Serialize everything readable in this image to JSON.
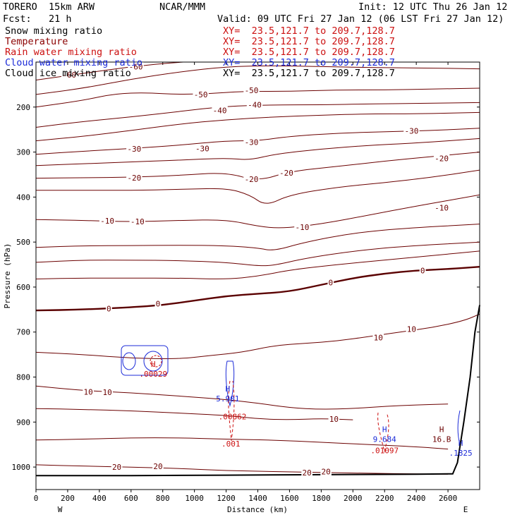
{
  "header": {
    "model": "TORERO  15km ARW",
    "center": "NCAR/MMM",
    "init": "Init: 12 UTC Thu 26 Jan 12",
    "fcst": "Fcst:   21 h",
    "valid": "Valid: 09 UTC Fri 27 Jan 12 (06 LST Fri 27 Jan 12)",
    "fields": [
      {
        "name": "Snow mixing ratio",
        "xy": "XY=  23.5,121.7 to 209.7,128.7",
        "color": "#000000"
      },
      {
        "name": "Temperature",
        "xy": "XY=  23.5,121.7 to 209.7,128.7",
        "color": "#8b0000"
      },
      {
        "name": "Rain water mixing ratio",
        "xy": "XY=  23.5,121.7 to 209.7,128.7",
        "color": "#cc1010"
      },
      {
        "name": "Cloud water mixing ratio",
        "xy": "XY=  23.5,121.7 to 209.7,128.7",
        "color": "#1c2bd8"
      },
      {
        "name": "Cloud ice mixing ratio",
        "xy": "XY=  23.5,121.7 to 209.7,128.7",
        "color": "#000000"
      }
    ]
  },
  "chart_data": {
    "type": "contour-cross-section",
    "xlabel": "Distance (km)",
    "ylabel": "Pressure (hPa)",
    "xlim": [
      0,
      2800
    ],
    "ylim": [
      1050,
      100
    ],
    "xticks": [
      0,
      200,
      400,
      600,
      800,
      1000,
      1200,
      1400,
      1600,
      1800,
      2000,
      2200,
      2400,
      2600
    ],
    "yticks": [
      200,
      300,
      400,
      500,
      600,
      700,
      800,
      900,
      1000
    ],
    "x_end_labels": {
      "left": "W",
      "right": "E"
    },
    "temperature_isotherms": [
      {
        "value": -60,
        "points": [
          [
            0,
            140
          ],
          [
            300,
            125
          ],
          [
            600,
            110
          ],
          [
            900,
            100
          ],
          [
            1200,
            96
          ],
          [
            1500,
            93
          ],
          [
            1800,
            92
          ],
          [
            2100,
            93
          ],
          [
            2400,
            96
          ],
          [
            2800,
            100
          ]
        ]
      },
      {
        "value": -60,
        "points": [
          [
            0,
            172
          ],
          [
            300,
            158
          ],
          [
            600,
            138
          ],
          [
            900,
            122
          ],
          [
            1200,
            110
          ],
          [
            1500,
            108
          ],
          [
            1800,
            110
          ],
          [
            2100,
            112
          ],
          [
            2400,
            113
          ],
          [
            2800,
            115
          ]
        ]
      },
      {
        "value": -50,
        "points": [
          [
            0,
            200
          ],
          [
            300,
            185
          ],
          [
            500,
            170
          ],
          [
            700,
            168
          ],
          [
            900,
            172
          ],
          [
            1100,
            170
          ],
          [
            1300,
            165
          ],
          [
            1600,
            165
          ],
          [
            1900,
            162
          ],
          [
            2200,
            162
          ],
          [
            2500,
            160
          ],
          [
            2800,
            158
          ]
        ]
      },
      {
        "value": -40,
        "points": [
          [
            0,
            245
          ],
          [
            300,
            232
          ],
          [
            600,
            222
          ],
          [
            900,
            210
          ],
          [
            1200,
            198
          ],
          [
            1500,
            195
          ],
          [
            1800,
            195
          ],
          [
            2100,
            193
          ],
          [
            2400,
            192
          ],
          [
            2800,
            190
          ]
        ]
      },
      {
        "value": -40,
        "points": [
          [
            0,
            275
          ],
          [
            300,
            265
          ],
          [
            600,
            252
          ],
          [
            900,
            238
          ],
          [
            1200,
            228
          ],
          [
            1500,
            222
          ],
          [
            1800,
            218
          ],
          [
            2100,
            215
          ],
          [
            2400,
            215
          ],
          [
            2800,
            212
          ]
        ]
      },
      {
        "value": -30,
        "points": [
          [
            0,
            305
          ],
          [
            300,
            298
          ],
          [
            600,
            292
          ],
          [
            900,
            285
          ],
          [
            1200,
            275
          ],
          [
            1400,
            275
          ],
          [
            1600,
            265
          ],
          [
            1900,
            258
          ],
          [
            2200,
            255
          ],
          [
            2500,
            252
          ],
          [
            2800,
            247
          ]
        ]
      },
      {
        "value": -30,
        "points": [
          [
            0,
            330
          ],
          [
            300,
            326
          ],
          [
            600,
            322
          ],
          [
            900,
            318
          ],
          [
            1200,
            313
          ],
          [
            1350,
            318
          ],
          [
            1500,
            305
          ],
          [
            1800,
            293
          ],
          [
            2100,
            285
          ],
          [
            2400,
            280
          ],
          [
            2800,
            270
          ]
        ]
      },
      {
        "value": -20,
        "points": [
          [
            0,
            358
          ],
          [
            300,
            357
          ],
          [
            600,
            356
          ],
          [
            900,
            352
          ],
          [
            1200,
            345
          ],
          [
            1400,
            365
          ],
          [
            1600,
            343
          ],
          [
            1900,
            332
          ],
          [
            2200,
            320
          ],
          [
            2500,
            310
          ],
          [
            2800,
            300
          ]
        ]
      },
      {
        "value": -20,
        "points": [
          [
            0,
            385
          ],
          [
            300,
            385
          ],
          [
            600,
            385
          ],
          [
            900,
            383
          ],
          [
            1200,
            380
          ],
          [
            1350,
            395
          ],
          [
            1450,
            420
          ],
          [
            1600,
            395
          ],
          [
            1900,
            378
          ],
          [
            2200,
            368
          ],
          [
            2500,
            356
          ],
          [
            2800,
            340
          ]
        ]
      },
      {
        "value": -10,
        "points": [
          [
            0,
            450
          ],
          [
            300,
            452
          ],
          [
            600,
            455
          ],
          [
            900,
            452
          ],
          [
            1200,
            450
          ],
          [
            1400,
            465
          ],
          [
            1550,
            470
          ],
          [
            1800,
            460
          ],
          [
            2100,
            440
          ],
          [
            2400,
            420
          ],
          [
            2800,
            395
          ]
        ]
      },
      {
        "value": -10,
        "points": [
          [
            0,
            512
          ],
          [
            300,
            508
          ],
          [
            600,
            508
          ],
          [
            900,
            507
          ],
          [
            1200,
            508
          ],
          [
            1400,
            513
          ],
          [
            1500,
            520
          ],
          [
            1700,
            500
          ],
          [
            2000,
            480
          ],
          [
            2300,
            470
          ],
          [
            2800,
            460
          ]
        ]
      },
      {
        "value": -10,
        "points": [
          [
            0,
            545
          ],
          [
            300,
            540
          ],
          [
            600,
            540
          ],
          [
            900,
            541
          ],
          [
            1200,
            545
          ],
          [
            1400,
            553
          ],
          [
            1500,
            552
          ],
          [
            1700,
            536
          ],
          [
            2000,
            520
          ],
          [
            2300,
            510
          ],
          [
            2800,
            500
          ]
        ]
      },
      {
        "value": -10,
        "points": [
          [
            0,
            582
          ],
          [
            300,
            580
          ],
          [
            600,
            580
          ],
          [
            900,
            580
          ],
          [
            1200,
            583
          ],
          [
            1400,
            576
          ],
          [
            1600,
            562
          ],
          [
            1900,
            550
          ],
          [
            2200,
            540
          ],
          [
            2500,
            530
          ],
          [
            2800,
            520
          ]
        ]
      },
      {
        "value": 0,
        "bold": true,
        "points": [
          [
            0,
            652
          ],
          [
            300,
            650
          ],
          [
            600,
            645
          ],
          [
            800,
            640
          ],
          [
            1000,
            630
          ],
          [
            1200,
            620
          ],
          [
            1400,
            615
          ],
          [
            1600,
            610
          ],
          [
            1800,
            595
          ],
          [
            2000,
            580
          ],
          [
            2200,
            570
          ],
          [
            2400,
            563
          ],
          [
            2600,
            560
          ],
          [
            2800,
            555
          ]
        ]
      },
      {
        "value": 10,
        "points": [
          [
            0,
            745
          ],
          [
            300,
            750
          ],
          [
            600,
            758
          ],
          [
            900,
            760
          ],
          [
            1100,
            752
          ],
          [
            1300,
            745
          ],
          [
            1500,
            730
          ],
          [
            1700,
            725
          ],
          [
            1900,
            720
          ],
          [
            2100,
            710
          ],
          [
            2300,
            700
          ],
          [
            2500,
            690
          ],
          [
            2700,
            675
          ],
          [
            2800,
            660
          ]
        ]
      },
      {
        "value": 10,
        "points": [
          [
            0,
            820
          ],
          [
            300,
            830
          ],
          [
            600,
            835
          ],
          [
            900,
            842
          ],
          [
            1200,
            850
          ],
          [
            1400,
            858
          ],
          [
            1600,
            868
          ],
          [
            1800,
            872
          ],
          [
            2000,
            870
          ],
          [
            2200,
            865
          ],
          [
            2400,
            862
          ],
          [
            2600,
            860
          ]
        ]
      },
      {
        "value": 10,
        "points": [
          [
            0,
            870
          ],
          [
            300,
            872
          ],
          [
            600,
            875
          ],
          [
            900,
            880
          ],
          [
            1200,
            885
          ],
          [
            1400,
            893
          ],
          [
            1600,
            895
          ],
          [
            1800,
            892
          ],
          [
            2000,
            895
          ]
        ]
      },
      {
        "value": 20,
        "points": [
          [
            0,
            940
          ],
          [
            300,
            938
          ],
          [
            600,
            935
          ],
          [
            900,
            935
          ],
          [
            1200,
            938
          ],
          [
            1500,
            940
          ],
          [
            1800,
            945
          ],
          [
            2100,
            950
          ],
          [
            2400,
            955
          ],
          [
            2600,
            960
          ]
        ]
      },
      {
        "value": 20,
        "points": [
          [
            0,
            995
          ],
          [
            300,
            998
          ],
          [
            600,
            1000
          ],
          [
            900,
            1003
          ],
          [
            1200,
            1008
          ],
          [
            1500,
            1010
          ],
          [
            1800,
            1012
          ],
          [
            2100,
            1014
          ],
          [
            2400,
            1015
          ],
          [
            2600,
            1016
          ]
        ]
      }
    ],
    "contour_labels": [
      {
        "text": "-60",
        "x": 210,
        "y": 128
      },
      {
        "text": "-60",
        "x": 630,
        "y": 110
      },
      {
        "text": "-50",
        "x": 1040,
        "y": 172
      },
      {
        "text": "-50",
        "x": 1360,
        "y": 163
      },
      {
        "text": "-40",
        "x": 1160,
        "y": 207
      },
      {
        "text": "-40",
        "x": 1380,
        "y": 195
      },
      {
        "text": "-30",
        "x": 620,
        "y": 293
      },
      {
        "text": "-30",
        "x": 1050,
        "y": 292
      },
      {
        "text": "-30",
        "x": 1360,
        "y": 278
      },
      {
        "text": "-30",
        "x": 2370,
        "y": 253
      },
      {
        "text": "-20",
        "x": 620,
        "y": 357
      },
      {
        "text": "-20",
        "x": 1360,
        "y": 360
      },
      {
        "text": "-20",
        "x": 1580,
        "y": 346
      },
      {
        "text": "-20",
        "x": 2560,
        "y": 314
      },
      {
        "text": "-10",
        "x": 450,
        "y": 453
      },
      {
        "text": "-10",
        "x": 640,
        "y": 454
      },
      {
        "text": "-10",
        "x": 1680,
        "y": 467
      },
      {
        "text": "-10",
        "x": 2560,
        "y": 424
      },
      {
        "text": "0",
        "x": 460,
        "y": 648
      },
      {
        "text": "0",
        "x": 770,
        "y": 637
      },
      {
        "text": "0",
        "x": 1860,
        "y": 590
      },
      {
        "text": "0",
        "x": 2440,
        "y": 563
      },
      {
        "text": "10",
        "x": 2160,
        "y": 712
      },
      {
        "text": "10",
        "x": 2370,
        "y": 693
      },
      {
        "text": "10",
        "x": 330,
        "y": 833
      },
      {
        "text": "10",
        "x": 450,
        "y": 834
      },
      {
        "text": "10",
        "x": 1880,
        "y": 893
      },
      {
        "text": "20",
        "x": 510,
        "y": 1000
      },
      {
        "text": "20",
        "x": 770,
        "y": 998
      },
      {
        "text": "20",
        "x": 1710,
        "y": 1012
      },
      {
        "text": "20",
        "x": 1830,
        "y": 1010
      }
    ],
    "extrema_labels": [
      {
        "marker": "H",
        "value": ".00029",
        "x": 740,
        "y": 790,
        "color": "#cc1010"
      },
      {
        "marker": "H",
        "value": "5.901",
        "x": 1210,
        "y": 845,
        "color": "#1c2bd8"
      },
      {
        "marker": "",
        "value": ".00862",
        "x": 1240,
        "y": 885,
        "color": "#cc1010"
      },
      {
        "marker": "",
        "value": ".001",
        "x": 1230,
        "y": 945,
        "color": "#cc1010"
      },
      {
        "marker": "H",
        "value": "9.684",
        "x": 2200,
        "y": 935,
        "color": "#1c2bd8"
      },
      {
        "marker": "",
        "value": ".01097",
        "x": 2200,
        "y": 960,
        "color": "#cc1010"
      },
      {
        "marker": "H",
        "value": "16.B",
        "x": 2560,
        "y": 935,
        "color": "#6b0000"
      },
      {
        "marker": "H",
        "value": ".1825",
        "x": 2680,
        "y": 965,
        "color": "#1c2bd8"
      }
    ],
    "terrain": [
      [
        0,
        1019
      ],
      [
        600,
        1019
      ],
      [
        1200,
        1018
      ],
      [
        1800,
        1017
      ],
      [
        2400,
        1016
      ],
      [
        2630,
        1015
      ],
      [
        2660,
        990
      ],
      [
        2700,
        900
      ],
      [
        2740,
        800
      ],
      [
        2770,
        700
      ],
      [
        2800,
        640
      ]
    ]
  }
}
